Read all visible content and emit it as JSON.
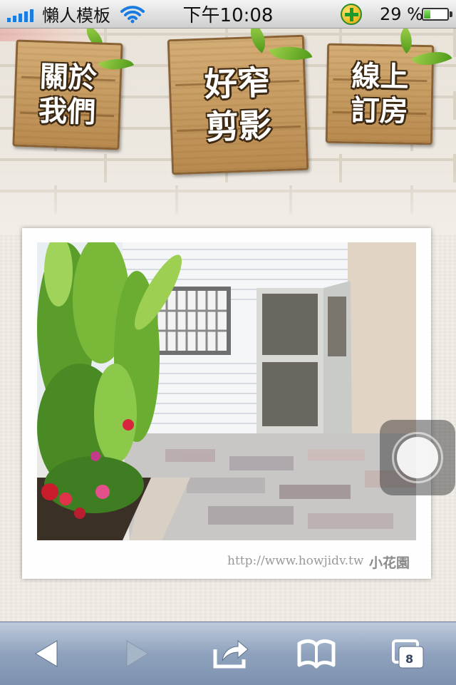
{
  "status_bar": {
    "carrier": "懶人模板",
    "time": "下午10:08",
    "battery_percent": "29 %",
    "battery_level": 0.29,
    "icons": [
      "signal-icon",
      "wifi-icon",
      "plus-app-icon",
      "battery-icon"
    ]
  },
  "nav": {
    "about": "關於\n我們",
    "gallery": "好窄\n剪影",
    "booking": "線上\n訂房"
  },
  "photo": {
    "caption_url": "http://www.howjidv.tw",
    "caption_name": "小花園"
  },
  "toolbar": {
    "tabs_count": "8",
    "icons": [
      "back-icon",
      "forward-icon",
      "share-icon",
      "bookmarks-icon",
      "tabs-icon"
    ]
  },
  "colors": {
    "wood": "#c49a61",
    "toolbar": "#8fa2bd",
    "leaf": "#6cb52a"
  }
}
